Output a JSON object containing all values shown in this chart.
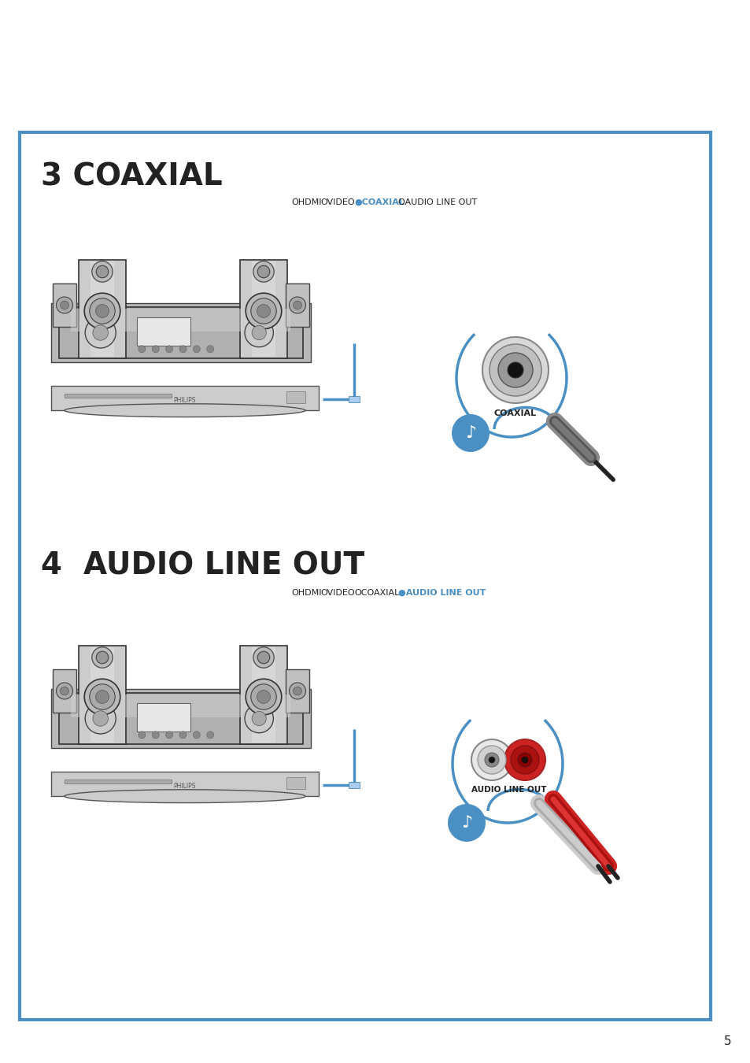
{
  "bg_color": "#ffffff",
  "border_color": "#4a90c4",
  "border_lw": 3,
  "page_num": "5",
  "s1_title": "3 COAXIAL",
  "s2_title": "4  AUDIO LINE OUT",
  "blue": "#4a90c4",
  "dark": "#222222",
  "gray1": "#cccccc",
  "gray2": "#aaaaaa",
  "gray3": "#888888",
  "gray4": "#666666",
  "gray5": "#444444",
  "coaxial_label": "COAXIAL",
  "audio_label": "AUDIO LINE OUT",
  "philips": "PHILIPS",
  "nav1": [
    "OHDMI",
    "OVIDEO",
    "●COAXIAL",
    "OAUDIO LINE OUT"
  ],
  "nav1_active": 2,
  "nav2": [
    "OHDMI",
    "OVIDEO",
    "OCOAXIAL",
    "●AUDIO LINE OUT"
  ],
  "nav2_active": 3
}
